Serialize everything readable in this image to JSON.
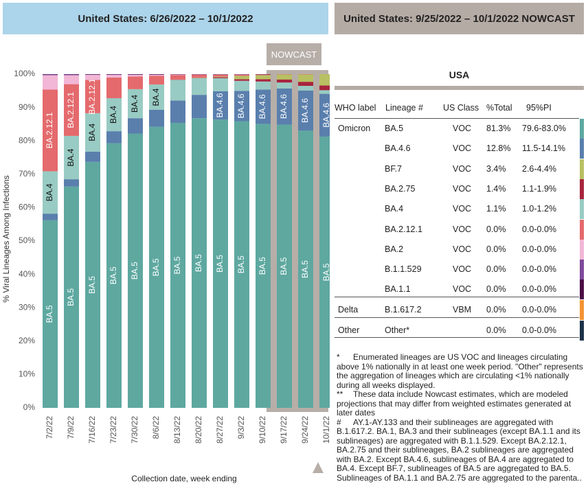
{
  "left_header": "United States: 6/26/2022 – 10/1/2022",
  "right_header": "United States: 9/25/2022 – 10/1/2022 NOWCAST",
  "nowcast_label": "NOWCAST",
  "chart_data": {
    "type": "stacked-bar",
    "y_axis_label": "% Viral Lineages Among Infections",
    "x_axis_label": "Collection date, week ending",
    "categories": [
      "7/2/22",
      "7/9/22",
      "7/16/22",
      "7/23/22",
      "7/30/22",
      "8/6/22",
      "8/13/22",
      "8/20/22",
      "8/27/22",
      "9/3/22",
      "9/10/22",
      "9/17/22",
      "9/24/22",
      "10/1/22"
    ],
    "ylim": [
      0,
      100
    ],
    "yticks": [
      {
        "value": 0,
        "label": "0%"
      },
      {
        "value": 10,
        "label": "10%"
      },
      {
        "value": 20,
        "label": "20%"
      },
      {
        "value": 30,
        "label": "30%"
      },
      {
        "value": 40,
        "label": "40%"
      },
      {
        "value": 50,
        "label": "50%"
      },
      {
        "value": 60,
        "label": "60%"
      },
      {
        "value": 70,
        "label": "70%"
      },
      {
        "value": 80,
        "label": "80%"
      },
      {
        "value": 90,
        "label": "90%"
      },
      {
        "value": 100,
        "label": "100%"
      }
    ],
    "series": [
      {
        "name": "BA.5",
        "color": "#5ea8a0",
        "values": [
          56.2,
          66.3,
          73.7,
          79.3,
          82.2,
          84.2,
          85.4,
          86.8,
          86.4,
          85.9,
          85.1,
          84.9,
          83.1,
          81.3
        ]
      },
      {
        "name": "BA.4.6",
        "color": "#5a7fad",
        "values": [
          2,
          2.2,
          3.1,
          3.6,
          4.6,
          5.1,
          6.7,
          7,
          8.5,
          9.1,
          10.3,
          10.8,
          12,
          12.8
        ]
      },
      {
        "name": "BA.4",
        "color": "#98cbc3",
        "values": [
          12.7,
          13,
          11.5,
          9.9,
          8.7,
          7.6,
          6.2,
          5,
          3.9,
          3,
          2.4,
          1.8,
          1.4,
          1.1
        ]
      },
      {
        "color": "#a8253e",
        "values": [
          0,
          0,
          0,
          0,
          0,
          0,
          0.1,
          0.1,
          0.3,
          0.5,
          0.7,
          0.9,
          1.2,
          1.4
        ]
      },
      {
        "color": "#b8c063",
        "values": [
          0,
          0,
          0,
          0,
          0,
          0,
          0,
          0.1,
          0.2,
          1,
          1.2,
          1.5,
          2.2,
          3.4
        ]
      },
      {
        "name": "BA.2.12.1",
        "color": "#e46a6d",
        "values": [
          24.5,
          15.5,
          10,
          6.2,
          3.8,
          2.6,
          1.3,
          0.8,
          0.5,
          0.3,
          0.2,
          0.1,
          0.1,
          0
        ]
      },
      {
        "color": "#f2b6d7",
        "values": [
          4.3,
          2.7,
          1.5,
          0.8,
          0.5,
          0.3,
          0.2,
          0.1,
          0.1,
          0.1,
          0,
          0,
          0,
          0
        ]
      },
      {
        "color": "#7e4a9b",
        "values": [
          0.2,
          0.2,
          0.1,
          0.1,
          0.1,
          0.1,
          0,
          0,
          0,
          0,
          0,
          0,
          0,
          0
        ]
      },
      {
        "color": "#4b0e45",
        "values": [
          0.1,
          0.1,
          0.1,
          0.1,
          0.1,
          0.1,
          0.1,
          0.1,
          0.1,
          0.1,
          0.1,
          0,
          0,
          0
        ]
      }
    ]
  },
  "table": {
    "title": "USA",
    "columns": [
      "WHO label",
      "Lineage #",
      "US Class",
      "%Total",
      "95%PI"
    ],
    "groups": [
      {
        "label": "Omicron",
        "rows": [
          {
            "lineage": "BA.5",
            "class": "VOC",
            "total": "81.3%",
            "pi": "79.6-83.0%",
            "color": "#5ea8a0"
          },
          {
            "lineage": "BA.4.6",
            "class": "VOC",
            "total": "12.8%",
            "pi": "11.5-14.1%",
            "color": "#5a7fad"
          },
          {
            "lineage": "BF.7",
            "class": "VOC",
            "total": "3.4%",
            "pi": "2.6-4.4%",
            "color": "#b8c063"
          },
          {
            "lineage": "BA.2.75",
            "class": "VOC",
            "total": "1.4%",
            "pi": "1.1-1.9%",
            "color": "#a8253e"
          },
          {
            "lineage": "BA.4",
            "class": "VOC",
            "total": "1.1%",
            "pi": "1.0-1.2%",
            "color": "#98cbc3"
          },
          {
            "lineage": "BA.2.12.1",
            "class": "VOC",
            "total": "0.0%",
            "pi": "0.0-0.0%",
            "color": "#e46a6d"
          },
          {
            "lineage": "BA.2",
            "class": "VOC",
            "total": "0.0%",
            "pi": "0.0-0.0%",
            "color": "#f2b6d7"
          },
          {
            "lineage": "B.1.1.529",
            "class": "VOC",
            "total": "0.0%",
            "pi": "0.0-0.0%",
            "color": "#7e4a9b"
          },
          {
            "lineage": "BA.1.1",
            "class": "VOC",
            "total": "0.0%",
            "pi": "0.0-0.0%",
            "color": "#4b0e45"
          }
        ]
      },
      {
        "label": "Delta",
        "rows": [
          {
            "lineage": "B.1.617.2",
            "class": "VBM",
            "total": "0.0%",
            "pi": "0.0-0.0%",
            "color": "#f39334"
          }
        ]
      },
      {
        "label": "Other",
        "rows": [
          {
            "lineage": "Other*",
            "total": "0.0%",
            "pi": "0.0-0.0%",
            "color": "#1d3248"
          }
        ]
      }
    ]
  },
  "footnotes": [
    {
      "marker": "*",
      "text": "Enumerated lineages are US VOC and lineages circulating above 1% nationally in at least one week period. \"Other\" represents the aggregation of lineages which are circulating <1% nationally during all weeks displayed."
    },
    {
      "marker": "**",
      "text": "These data include Nowcast estimates, which are modeled projections that may differ from weighted estimates generated at later dates"
    },
    {
      "marker": "#",
      "text": "AY.1-AY.133 and their sublineages are aggregated with B.1.617.2. BA.1, BA.3 and their sublineages (except BA.1.1 and its sublineages) are aggregated with B.1.1.529. Except BA.2.12.1, BA.2.75 and their sublineages, BA.2 sublineages are aggregated with BA.2. Except BA.4.6, sublineages of BA.4 are aggregated to BA.4. Except BF.7, sublineages of BA.5 are aggregated to BA.5. Sublineages of BA.1.1 and BA.2.75 are aggregated to the parenta.."
    }
  ]
}
